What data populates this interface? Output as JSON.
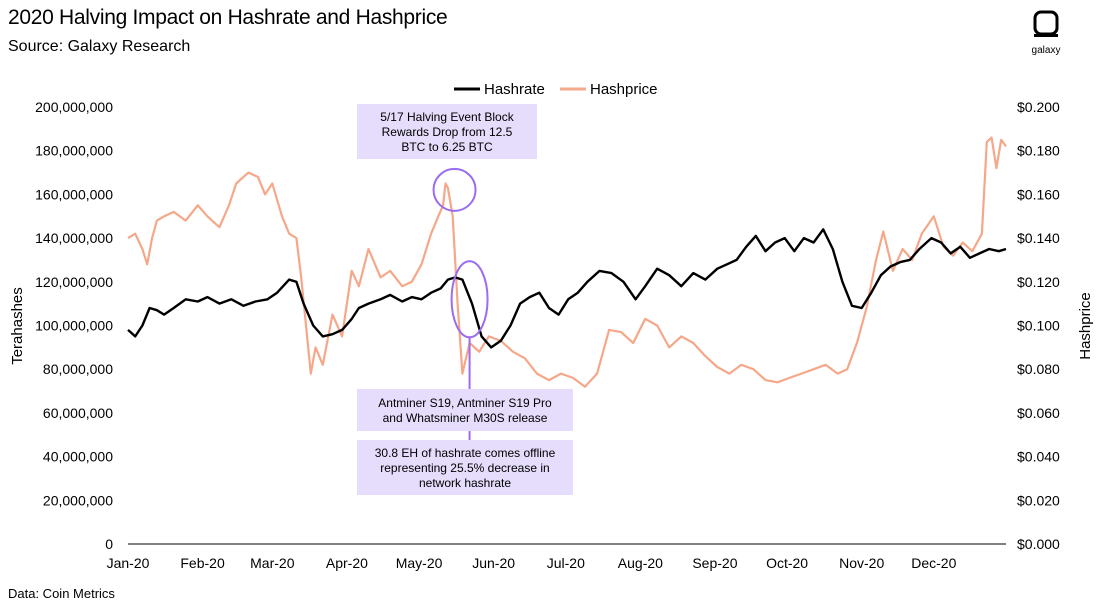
{
  "header": {
    "title": "2020 Halving Impact on Hashrate and Hashprice",
    "subtitle": "Source: Galaxy Research",
    "footnote": "Data: Coin Metrics",
    "logo_text": "galaxy"
  },
  "colors": {
    "hashrate": "#000000",
    "hashprice": "#f5a889",
    "annotation_box": "#e6dcfb",
    "annotation_marker": "#9b6cf0"
  },
  "chart_data": {
    "type": "line",
    "xlabel": "",
    "ylabel": "Terahashes",
    "y2label": "Hashprice",
    "x_ticks": [
      "Jan-20",
      "Feb-20",
      "Mar-20",
      "Apr-20",
      "May-20",
      "Jun-20",
      "Jul-20",
      "Aug-20",
      "Sep-20",
      "Oct-20",
      "Nov-20",
      "Dec-20"
    ],
    "ylim": [
      0,
      200000000
    ],
    "y_ticks": [
      "0",
      "20,000,000",
      "40,000,000",
      "60,000,000",
      "80,000,000",
      "100,000,000",
      "120,000,000",
      "140,000,000",
      "160,000,000",
      "180,000,000",
      "200,000,000"
    ],
    "y2lim": [
      0,
      0.2
    ],
    "y2_ticks": [
      "$0.000",
      "$0.020",
      "$0.040",
      "$0.060",
      "$0.080",
      "$0.100",
      "$0.120",
      "$0.140",
      "$0.160",
      "$0.180",
      "$0.200"
    ],
    "grid": false,
    "legend": "top-center",
    "legend_entries": [
      "Hashrate",
      "Hashprice"
    ],
    "series": [
      {
        "name": "Hashrate",
        "axis": "left",
        "x": [
          "2020-01-01",
          "2020-01-04",
          "2020-01-07",
          "2020-01-10",
          "2020-01-13",
          "2020-01-16",
          "2020-01-20",
          "2020-01-25",
          "2020-01-30",
          "2020-02-03",
          "2020-02-08",
          "2020-02-13",
          "2020-02-18",
          "2020-02-23",
          "2020-02-28",
          "2020-03-03",
          "2020-03-08",
          "2020-03-11",
          "2020-03-14",
          "2020-03-18",
          "2020-03-22",
          "2020-03-26",
          "2020-03-30",
          "2020-04-03",
          "2020-04-06",
          "2020-04-10",
          "2020-04-15",
          "2020-04-19",
          "2020-04-24",
          "2020-04-28",
          "2020-05-02",
          "2020-05-06",
          "2020-05-10",
          "2020-05-13",
          "2020-05-16",
          "2020-05-19",
          "2020-05-23",
          "2020-05-27",
          "2020-05-31",
          "2020-06-04",
          "2020-06-08",
          "2020-06-12",
          "2020-06-16",
          "2020-06-20",
          "2020-06-24",
          "2020-06-28",
          "2020-07-02",
          "2020-07-06",
          "2020-07-10",
          "2020-07-15",
          "2020-07-20",
          "2020-07-25",
          "2020-07-30",
          "2020-08-03",
          "2020-08-08",
          "2020-08-13",
          "2020-08-18",
          "2020-08-23",
          "2020-08-28",
          "2020-09-02",
          "2020-09-06",
          "2020-09-10",
          "2020-09-14",
          "2020-09-18",
          "2020-09-22",
          "2020-09-26",
          "2020-09-30",
          "2020-10-04",
          "2020-10-08",
          "2020-10-12",
          "2020-10-16",
          "2020-10-20",
          "2020-10-24",
          "2020-10-28",
          "2020-11-01",
          "2020-11-05",
          "2020-11-09",
          "2020-11-13",
          "2020-11-17",
          "2020-11-21",
          "2020-11-25",
          "2020-11-30",
          "2020-12-04",
          "2020-12-08",
          "2020-12-12",
          "2020-12-16",
          "2020-12-20",
          "2020-12-24",
          "2020-12-28",
          "2020-12-31"
        ],
        "values": [
          98000000,
          95000000,
          100000000,
          108000000,
          107000000,
          105000000,
          108000000,
          112000000,
          111000000,
          113000000,
          110000000,
          112000000,
          109000000,
          111000000,
          112000000,
          115000000,
          121000000,
          120000000,
          110000000,
          100000000,
          95000000,
          96000000,
          98000000,
          103000000,
          108000000,
          110000000,
          112000000,
          114000000,
          111000000,
          113000000,
          112000000,
          115000000,
          117000000,
          121000000,
          122000000,
          121000000,
          110000000,
          95000000,
          90000000,
          93000000,
          100000000,
          110000000,
          113000000,
          115000000,
          108000000,
          105000000,
          112000000,
          115000000,
          120000000,
          125000000,
          124000000,
          120000000,
          112000000,
          118000000,
          126000000,
          123000000,
          118000000,
          124000000,
          121000000,
          126000000,
          128000000,
          130000000,
          136000000,
          141000000,
          134000000,
          138000000,
          140000000,
          134000000,
          140000000,
          138000000,
          144000000,
          135000000,
          120000000,
          109000000,
          108000000,
          115000000,
          123000000,
          127000000,
          129000000,
          130000000,
          135000000,
          140000000,
          138000000,
          133000000,
          136000000,
          131000000,
          133000000,
          135000000,
          134000000,
          135000000
        ]
      },
      {
        "name": "Hashprice",
        "axis": "right",
        "x": [
          "2020-01-01",
          "2020-01-04",
          "2020-01-07",
          "2020-01-09",
          "2020-01-11",
          "2020-01-13",
          "2020-01-16",
          "2020-01-20",
          "2020-01-25",
          "2020-01-30",
          "2020-02-03",
          "2020-02-08",
          "2020-02-12",
          "2020-02-15",
          "2020-02-20",
          "2020-02-24",
          "2020-02-27",
          "2020-03-01",
          "2020-03-05",
          "2020-03-08",
          "2020-03-11",
          "2020-03-13",
          "2020-03-15",
          "2020-03-17",
          "2020-03-19",
          "2020-03-22",
          "2020-03-26",
          "2020-03-30",
          "2020-04-03",
          "2020-04-06",
          "2020-04-10",
          "2020-04-15",
          "2020-04-19",
          "2020-04-24",
          "2020-04-28",
          "2020-05-02",
          "2020-05-06",
          "2020-05-09",
          "2020-05-11",
          "2020-05-12",
          "2020-05-13",
          "2020-05-15",
          "2020-05-17",
          "2020-05-19",
          "2020-05-22",
          "2020-05-26",
          "2020-05-30",
          "2020-06-04",
          "2020-06-09",
          "2020-06-14",
          "2020-06-19",
          "2020-06-24",
          "2020-06-29",
          "2020-07-04",
          "2020-07-09",
          "2020-07-14",
          "2020-07-19",
          "2020-07-24",
          "2020-07-29",
          "2020-08-03",
          "2020-08-08",
          "2020-08-13",
          "2020-08-18",
          "2020-08-23",
          "2020-08-28",
          "2020-09-02",
          "2020-09-07",
          "2020-09-12",
          "2020-09-17",
          "2020-09-22",
          "2020-09-27",
          "2020-10-02",
          "2020-10-07",
          "2020-10-12",
          "2020-10-17",
          "2020-10-22",
          "2020-10-26",
          "2020-10-30",
          "2020-11-03",
          "2020-11-07",
          "2020-11-10",
          "2020-11-14",
          "2020-11-18",
          "2020-11-22",
          "2020-11-26",
          "2020-12-01",
          "2020-12-05",
          "2020-12-09",
          "2020-12-13",
          "2020-12-17",
          "2020-12-21",
          "2020-12-23",
          "2020-12-25",
          "2020-12-27",
          "2020-12-29",
          "2020-12-31"
        ],
        "values": [
          0.14,
          0.142,
          0.135,
          0.128,
          0.14,
          0.148,
          0.15,
          0.152,
          0.148,
          0.155,
          0.15,
          0.145,
          0.155,
          0.165,
          0.17,
          0.168,
          0.16,
          0.165,
          0.15,
          0.142,
          0.14,
          0.122,
          0.1,
          0.078,
          0.09,
          0.082,
          0.105,
          0.095,
          0.125,
          0.118,
          0.135,
          0.122,
          0.125,
          0.118,
          0.12,
          0.128,
          0.142,
          0.15,
          0.155,
          0.165,
          0.163,
          0.15,
          0.11,
          0.078,
          0.092,
          0.088,
          0.095,
          0.093,
          0.088,
          0.085,
          0.078,
          0.075,
          0.078,
          0.076,
          0.072,
          0.078,
          0.098,
          0.097,
          0.092,
          0.103,
          0.1,
          0.09,
          0.095,
          0.092,
          0.086,
          0.081,
          0.078,
          0.082,
          0.08,
          0.075,
          0.074,
          0.076,
          0.078,
          0.08,
          0.082,
          0.078,
          0.08,
          0.092,
          0.108,
          0.13,
          0.143,
          0.125,
          0.135,
          0.13,
          0.142,
          0.15,
          0.136,
          0.132,
          0.138,
          0.134,
          0.142,
          0.184,
          0.186,
          0.172,
          0.185,
          0.182
        ]
      }
    ],
    "annotations": [
      {
        "text": [
          "5/17 Halving Event Block",
          "Rewards Drop from 12.5",
          "BTC to 6.25 BTC"
        ],
        "date": "2020-05-17",
        "axis": "right",
        "value": 0.163
      },
      {
        "text": [
          "Antminer S19, Antminer S19 Pro",
          "and Whatsminer M30S release"
        ],
        "date": "2020-05-22",
        "axis": "left",
        "value": 112000000
      },
      {
        "text": [
          "30.8 EH of hashrate comes offline",
          "representing 25.5% decrease in",
          "network hashrate"
        ],
        "date": "2020-05-22",
        "axis": "left",
        "value": 112000000
      }
    ]
  }
}
